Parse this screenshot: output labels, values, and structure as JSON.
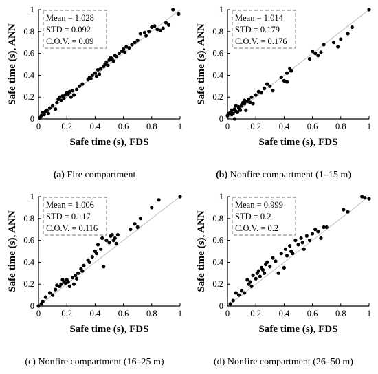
{
  "chart_data": [
    {
      "type": "scatter",
      "panel_letter": "(a)",
      "caption": "Fire compartment",
      "xlabel": "Safe time (s), FDS",
      "ylabel": "Safe time (s), ANN",
      "xlim": [
        0,
        1
      ],
      "ylim": [
        0,
        1
      ],
      "xticks": [
        "0",
        "0.2",
        "0.4",
        "0.6",
        "0.8",
        "1"
      ],
      "yticks": [
        "0",
        "0.2",
        "0.4",
        "0.6",
        "0.8",
        "1"
      ],
      "stats": [
        "Mean = 1.028",
        "STD = 0.092",
        "C.O.V. = 0.09"
      ],
      "reference_line": "y = x",
      "x": [
        0.01,
        0.02,
        0.03,
        0.04,
        0.05,
        0.06,
        0.07,
        0.08,
        0.1,
        0.12,
        0.13,
        0.14,
        0.15,
        0.16,
        0.17,
        0.18,
        0.19,
        0.2,
        0.21,
        0.22,
        0.23,
        0.24,
        0.25,
        0.27,
        0.29,
        0.31,
        0.35,
        0.36,
        0.37,
        0.38,
        0.4,
        0.41,
        0.42,
        0.43,
        0.44,
        0.46,
        0.47,
        0.48,
        0.49,
        0.5,
        0.51,
        0.52,
        0.53,
        0.54,
        0.55,
        0.57,
        0.59,
        0.6,
        0.61,
        0.62,
        0.64,
        0.66,
        0.68,
        0.7,
        0.72,
        0.75,
        0.76,
        0.78,
        0.8,
        0.82,
        0.84,
        0.86,
        0.88,
        0.9,
        0.92,
        0.95,
        0.99
      ],
      "y": [
        0.01,
        0.03,
        0.06,
        0.04,
        0.07,
        0.08,
        0.05,
        0.1,
        0.12,
        0.09,
        0.15,
        0.18,
        0.2,
        0.17,
        0.21,
        0.19,
        0.22,
        0.24,
        0.23,
        0.25,
        0.2,
        0.26,
        0.22,
        0.27,
        0.3,
        0.32,
        0.36,
        0.38,
        0.37,
        0.4,
        0.42,
        0.39,
        0.45,
        0.41,
        0.46,
        0.48,
        0.5,
        0.52,
        0.49,
        0.54,
        0.56,
        0.55,
        0.53,
        0.58,
        0.57,
        0.6,
        0.62,
        0.64,
        0.61,
        0.66,
        0.65,
        0.68,
        0.7,
        0.72,
        0.78,
        0.79,
        0.76,
        0.8,
        0.84,
        0.85,
        0.82,
        0.81,
        0.83,
        0.88,
        0.86,
        1.0,
        0.96
      ]
    },
    {
      "type": "scatter",
      "panel_letter": "(b)",
      "caption": "Nonfire compartment (1–15 m)",
      "xlabel": "Safe time (s), FDS",
      "ylabel": "Safe time (s), ANN",
      "xlim": [
        0,
        1
      ],
      "ylim": [
        0,
        1
      ],
      "xticks": [
        "0",
        "0.2",
        "0.4",
        "0.6",
        "0.8",
        "1"
      ],
      "yticks": [
        "0",
        "0.2",
        "0.4",
        "0.6",
        "0.8",
        "1"
      ],
      "stats": [
        "Mean = 1.014",
        "STD = 0.179",
        "C.O.V. = 0.176"
      ],
      "reference_line": "y = x",
      "x": [
        0.0,
        0.01,
        0.02,
        0.03,
        0.03,
        0.04,
        0.05,
        0.05,
        0.06,
        0.06,
        0.07,
        0.08,
        0.08,
        0.09,
        0.1,
        0.1,
        0.11,
        0.12,
        0.12,
        0.13,
        0.14,
        0.15,
        0.16,
        0.17,
        0.18,
        0.2,
        0.22,
        0.24,
        0.26,
        0.28,
        0.3,
        0.32,
        0.38,
        0.4,
        0.42,
        0.42,
        0.44,
        0.45,
        0.58,
        0.6,
        0.62,
        0.64,
        0.66,
        0.68,
        0.75,
        0.78,
        0.8,
        0.85,
        0.88,
        1.0
      ],
      "y": [
        0.03,
        0.05,
        0.06,
        0.04,
        0.08,
        0.05,
        0.09,
        0.0,
        0.12,
        0.07,
        0.06,
        0.1,
        0.11,
        0.08,
        0.13,
        0.12,
        0.15,
        0.17,
        0.14,
        0.08,
        0.16,
        0.18,
        0.15,
        0.2,
        0.14,
        0.22,
        0.25,
        0.24,
        0.28,
        0.32,
        0.3,
        0.26,
        0.38,
        0.35,
        0.42,
        0.34,
        0.46,
        0.44,
        0.55,
        0.62,
        0.6,
        0.58,
        0.61,
        0.68,
        0.7,
        0.66,
        0.73,
        0.78,
        0.84,
        1.0
      ]
    },
    {
      "type": "scatter",
      "panel_letter": "(c)",
      "caption": "Nonfire compartment (16–25 m)",
      "xlabel": "Safe time (s), FDS",
      "ylabel": "Safe time (s), ANN",
      "xlim": [
        0,
        1
      ],
      "ylim": [
        0,
        1
      ],
      "xticks": [
        "0",
        "0.2",
        "0.4",
        "0.6",
        "0.8",
        "1"
      ],
      "yticks": [
        "0",
        "0.2",
        "0.4",
        "0.6",
        "0.8",
        "1"
      ],
      "stats": [
        "Mean = 1.006",
        "STD = 0.117",
        "C.O.V. = 0.116"
      ],
      "reference_line": "y = x",
      "x": [
        0.0,
        0.02,
        0.03,
        0.05,
        0.08,
        0.1,
        0.12,
        0.13,
        0.15,
        0.16,
        0.17,
        0.18,
        0.19,
        0.2,
        0.21,
        0.22,
        0.24,
        0.25,
        0.26,
        0.27,
        0.28,
        0.3,
        0.31,
        0.32,
        0.35,
        0.36,
        0.38,
        0.4,
        0.41,
        0.42,
        0.44,
        0.45,
        0.46,
        0.48,
        0.5,
        0.51,
        0.52,
        0.53,
        0.54,
        0.55,
        0.56,
        0.65,
        0.68,
        0.7,
        0.72,
        0.8,
        0.85,
        1.0
      ],
      "y": [
        0.0,
        0.02,
        0.04,
        0.08,
        0.12,
        0.1,
        0.15,
        0.19,
        0.18,
        0.2,
        0.24,
        0.22,
        0.21,
        0.24,
        0.22,
        0.18,
        0.26,
        0.2,
        0.28,
        0.25,
        0.3,
        0.34,
        0.32,
        0.37,
        0.42,
        0.4,
        0.45,
        0.5,
        0.48,
        0.56,
        0.52,
        0.62,
        0.36,
        0.6,
        0.58,
        0.64,
        0.65,
        0.6,
        0.62,
        0.57,
        0.65,
        0.7,
        0.75,
        0.72,
        0.8,
        0.9,
        0.97,
        1.0
      ]
    },
    {
      "type": "scatter",
      "panel_letter": "(d)",
      "caption": "Nonfire compartment (26–50 m)",
      "xlabel": "Safe time (s), FDS",
      "ylabel": "Safe time (s), ANN",
      "xlim": [
        0,
        1
      ],
      "ylim": [
        0,
        1
      ],
      "xticks": [
        "0",
        "0.2",
        "0.4",
        "0.6",
        "0.8",
        "1"
      ],
      "yticks": [
        "0",
        "0.2",
        "0.4",
        "0.6",
        "0.8",
        "1"
      ],
      "stats": [
        "Mean = 0.999",
        "STD = 0.2",
        "C.O.V. = 0.2"
      ],
      "reference_line": "y = x",
      "x": [
        0.02,
        0.04,
        0.06,
        0.08,
        0.1,
        0.12,
        0.14,
        0.15,
        0.16,
        0.17,
        0.18,
        0.2,
        0.21,
        0.22,
        0.23,
        0.24,
        0.25,
        0.26,
        0.27,
        0.28,
        0.3,
        0.32,
        0.34,
        0.36,
        0.38,
        0.4,
        0.41,
        0.42,
        0.44,
        0.45,
        0.46,
        0.48,
        0.5,
        0.52,
        0.53,
        0.54,
        0.56,
        0.58,
        0.6,
        0.62,
        0.64,
        0.66,
        0.68,
        0.7,
        0.82,
        0.85,
        0.95,
        0.97,
        1.0
      ],
      "y": [
        0.02,
        0.05,
        0.12,
        0.1,
        0.14,
        0.12,
        0.24,
        0.2,
        0.22,
        0.18,
        0.28,
        0.25,
        0.3,
        0.32,
        0.27,
        0.35,
        0.33,
        0.3,
        0.38,
        0.4,
        0.36,
        0.44,
        0.41,
        0.3,
        0.48,
        0.35,
        0.52,
        0.46,
        0.55,
        0.5,
        0.48,
        0.6,
        0.56,
        0.62,
        0.58,
        0.52,
        0.64,
        0.6,
        0.66,
        0.7,
        0.68,
        0.62,
        0.72,
        0.72,
        0.88,
        0.86,
        1.0,
        0.99,
        0.98
      ]
    }
  ]
}
